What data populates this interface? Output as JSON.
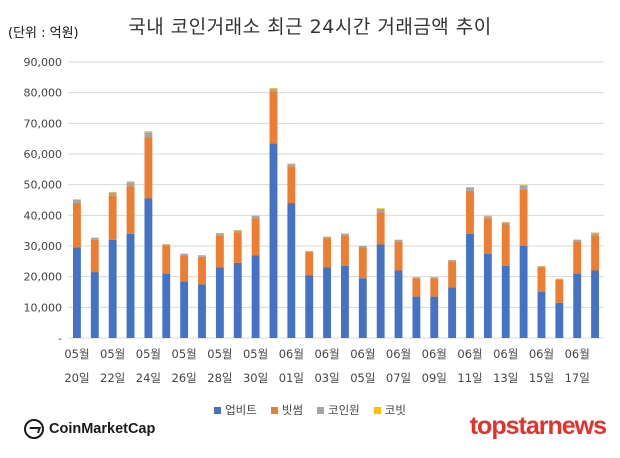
{
  "unit_label": "(단위 : 억원)",
  "title": "국내 코인거래소 최근 24시간 거래금액 추이",
  "logo_left": "CoinMarketCap",
  "logo_right": "topstarnews",
  "colors": {
    "upbit": "#4472c4",
    "bithumb": "#ed7d31",
    "coinone": "#a5a5a5",
    "korbit": "#ffc000",
    "grid": "#d9d9d9"
  },
  "chart_data": {
    "type": "bar",
    "stacked": true,
    "title": "국내 코인거래소 최근 24시간 거래금액 추이",
    "ylabel": "(단위 : 억원)",
    "xlabel": "",
    "ylim": [
      0,
      90000
    ],
    "y_ticks": [
      "-",
      "10,000",
      "20,000",
      "30,000",
      "40,000",
      "50,000",
      "60,000",
      "70,000",
      "80,000",
      "90,000"
    ],
    "x_tick_labels": [
      {
        "month": "05월",
        "day": "20일"
      },
      {
        "month": "05월",
        "day": "22일"
      },
      {
        "month": "05월",
        "day": "24일"
      },
      {
        "month": "05월",
        "day": "26일"
      },
      {
        "month": "05월",
        "day": "28일"
      },
      {
        "month": "05월",
        "day": "30일"
      },
      {
        "month": "06월",
        "day": "01일"
      },
      {
        "month": "06월",
        "day": "03일"
      },
      {
        "month": "06월",
        "day": "05일"
      },
      {
        "month": "06월",
        "day": "07일"
      },
      {
        "month": "06월",
        "day": "09일"
      },
      {
        "month": "06월",
        "day": "11일"
      },
      {
        "month": "06월",
        "day": "13일"
      },
      {
        "month": "06월",
        "day": "15일"
      },
      {
        "month": "06월",
        "day": "17일"
      }
    ],
    "legend_position": "bottom",
    "grid": true,
    "series": [
      {
        "name": "업비트",
        "values": [
          29500,
          21500,
          32000,
          34000,
          45500,
          21000,
          18500,
          17500,
          23000,
          24500,
          27000,
          63500,
          44000,
          20500,
          23000,
          23500,
          19500,
          30500,
          22000,
          13500,
          13500,
          16500,
          34000,
          27500,
          23500,
          30000,
          15000,
          11500,
          21000,
          22000
        ]
      },
      {
        "name": "빗썸",
        "values": [
          14500,
          10500,
          14500,
          15500,
          20000,
          9000,
          8500,
          9000,
          10500,
          10000,
          12000,
          17000,
          12000,
          7500,
          9500,
          10000,
          10000,
          10500,
          9500,
          6000,
          6000,
          8500,
          14000,
          11500,
          13500,
          18500,
          8000,
          7500,
          10500,
          11500
        ]
      },
      {
        "name": "코인원",
        "values": [
          1000,
          600,
          900,
          1300,
          1600,
          500,
          400,
          400,
          600,
          600,
          800,
          800,
          700,
          300,
          500,
          500,
          500,
          1100,
          500,
          300,
          300,
          400,
          1000,
          700,
          700,
          1200,
          400,
          300,
          500,
          700
        ]
      },
      {
        "name": "코빗",
        "values": [
          250,
          150,
          250,
          300,
          350,
          100,
          100,
          100,
          150,
          150,
          200,
          250,
          200,
          100,
          100,
          100,
          100,
          250,
          100,
          50,
          50,
          100,
          250,
          200,
          150,
          300,
          100,
          50,
          150,
          200
        ]
      }
    ]
  }
}
